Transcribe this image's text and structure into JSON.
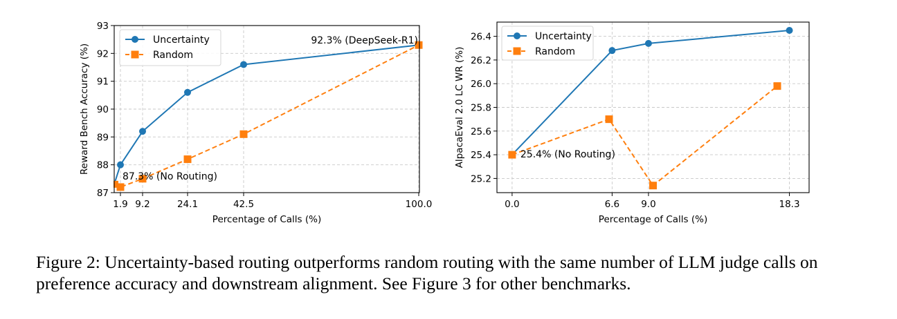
{
  "chart_data": [
    {
      "type": "line",
      "title": "",
      "xlabel": "Percentage of Calls (%)",
      "ylabel": "Reward Bench Accuracy (%)",
      "x_scale": "categorical-spacing",
      "x_ticks": [
        1.9,
        9.2,
        24.1,
        42.5,
        100.0
      ],
      "x_tick_labels": [
        "1.9",
        "9.2",
        "24.1",
        "42.5",
        "100.0"
      ],
      "ylim": [
        87,
        93
      ],
      "y_ticks": [
        87,
        88,
        89,
        90,
        91,
        92,
        93
      ],
      "y_tick_labels": [
        "87",
        "88",
        "89",
        "90",
        "91",
        "92",
        "93"
      ],
      "grid": true,
      "legend_position": "top-left",
      "series": [
        {
          "name": "Uncertainty",
          "color": "#1f77b4",
          "linestyle": "solid",
          "marker": "circle",
          "x": [
            0.0,
            1.9,
            9.2,
            24.1,
            42.5,
            100.0
          ],
          "y": [
            87.3,
            88.0,
            89.2,
            90.6,
            91.6,
            92.3
          ]
        },
        {
          "name": "Random",
          "color": "#ff7f0e",
          "linestyle": "dashed",
          "marker": "square",
          "x": [
            0.0,
            1.9,
            9.2,
            24.1,
            42.5,
            100.0
          ],
          "y": [
            87.3,
            87.2,
            87.5,
            88.2,
            89.1,
            92.3
          ]
        }
      ],
      "annotations": [
        {
          "text": "87.3% (No Routing)",
          "x": 0.0,
          "y": 87.3
        },
        {
          "text": "92.3% (DeepSeek-R1)",
          "x": 100.0,
          "y": 92.3
        }
      ]
    },
    {
      "type": "line",
      "title": "",
      "xlabel": "Percentage of Calls (%)",
      "ylabel": "AlpacaEval 2.0 LC WR (%)",
      "x_scale": "linear",
      "xlim": [
        -1.0,
        19.6
      ],
      "x_ticks": [
        0.0,
        6.6,
        9.0,
        18.3
      ],
      "x_tick_labels": [
        "0.0",
        "6.6",
        "9.0",
        "18.3"
      ],
      "ylim": [
        25.08,
        26.52
      ],
      "y_ticks": [
        25.2,
        25.4,
        25.6,
        25.8,
        26.0,
        26.2,
        26.4
      ],
      "y_tick_labels": [
        "25.2",
        "25.4",
        "25.6",
        "25.8",
        "26.0",
        "26.2",
        "26.4"
      ],
      "grid": true,
      "legend_position": "top-left",
      "series": [
        {
          "name": "Uncertainty",
          "color": "#1f77b4",
          "linestyle": "solid",
          "marker": "circle",
          "x": [
            0.0,
            6.6,
            9.0,
            18.3
          ],
          "y": [
            25.4,
            26.28,
            26.34,
            26.45
          ]
        },
        {
          "name": "Random",
          "color": "#ff7f0e",
          "linestyle": "dashed",
          "marker": "square",
          "x": [
            0.0,
            6.4,
            9.3,
            17.5
          ],
          "y": [
            25.4,
            25.7,
            25.14,
            25.98
          ]
        }
      ],
      "annotations": [
        {
          "text": "25.4% (No Routing)",
          "x": 0.0,
          "y": 25.4
        }
      ]
    }
  ],
  "caption": "Figure 2: Uncertainty-based routing outperforms random routing with the same number of LLM judge calls on preference accuracy and downstream alignment. See Figure 3 for other benchmarks."
}
